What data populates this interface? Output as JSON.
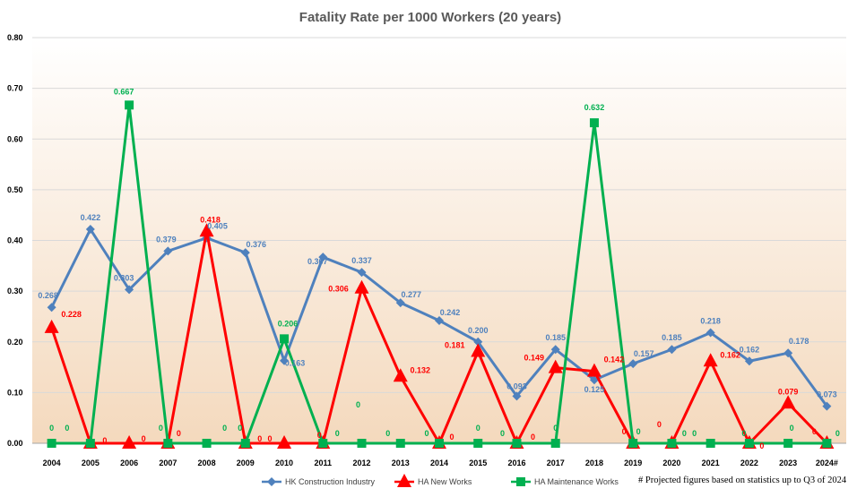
{
  "chart_data": {
    "type": "line",
    "title": "Fatality Rate per 1000 Workers (20 years)",
    "categories": [
      "2004",
      "2005",
      "2006",
      "2007",
      "2008",
      "2009",
      "2010",
      "2011",
      "2012",
      "2013",
      "2014",
      "2015",
      "2016",
      "2017",
      "2018",
      "2019",
      "2020",
      "2021",
      "2022",
      "2023",
      "2024#"
    ],
    "ylim": [
      0,
      0.8
    ],
    "yticks": [
      "0.00",
      "0.10",
      "0.20",
      "0.30",
      "0.40",
      "0.50",
      "0.60",
      "0.70",
      "0.80"
    ],
    "grid": true,
    "legend_position": "bottom",
    "series": [
      {
        "name": "HK Construction Industry",
        "color": "#4F81BD",
        "marker": "diamond",
        "values": [
          0.268,
          0.422,
          0.303,
          0.379,
          0.405,
          0.376,
          0.163,
          0.367,
          0.337,
          0.277,
          0.242,
          0.2,
          0.093,
          0.185,
          0.125,
          0.157,
          0.185,
          0.218,
          0.162,
          0.178,
          0.073
        ],
        "labels": [
          "0.268",
          "0.422",
          "0.303",
          "0.379",
          "0.405",
          "0.376",
          "0.163",
          "0.367",
          "0.337",
          "0.277",
          "0.242",
          "0.200",
          "0.093",
          "0.185",
          "0.125",
          "0.157",
          "0.185",
          "0.218",
          "0.162",
          "0.178",
          "0.073"
        ]
      },
      {
        "name": "HA New Works",
        "color": "#FF0000",
        "marker": "triangle",
        "values": [
          0.228,
          0,
          0,
          0,
          0.418,
          0,
          0,
          0,
          0.306,
          0.132,
          0,
          0.181,
          0,
          0.149,
          0.142,
          0,
          0,
          0.162,
          0,
          0.079,
          0
        ],
        "labels": [
          "0.228",
          "0",
          "0",
          "0",
          "0.418",
          "0",
          "0",
          "0",
          "0.306",
          "0.132",
          "0",
          "0.181",
          "0",
          "0.149",
          "0.142",
          "0",
          "0",
          "0.162",
          "0",
          "0.079",
          "0"
        ]
      },
      {
        "name": "HA Maintenance Works",
        "color": "#00B050",
        "marker": "square",
        "values": [
          0,
          0,
          0.667,
          0,
          0,
          0,
          0.206,
          0,
          0,
          0,
          0,
          0,
          0,
          0,
          0.632,
          0,
          0,
          0,
          0,
          0,
          0
        ],
        "labels": [
          "0",
          "0",
          "0.667",
          "0",
          "0",
          "0",
          "0.206",
          "0",
          "0",
          "0",
          "0",
          "0",
          "0",
          "0",
          "0.632",
          "0",
          "0",
          "0",
          "0",
          "0",
          "0"
        ]
      }
    ],
    "annotation": "# Projected figures based on statistics up to Q3 of 2024"
  }
}
